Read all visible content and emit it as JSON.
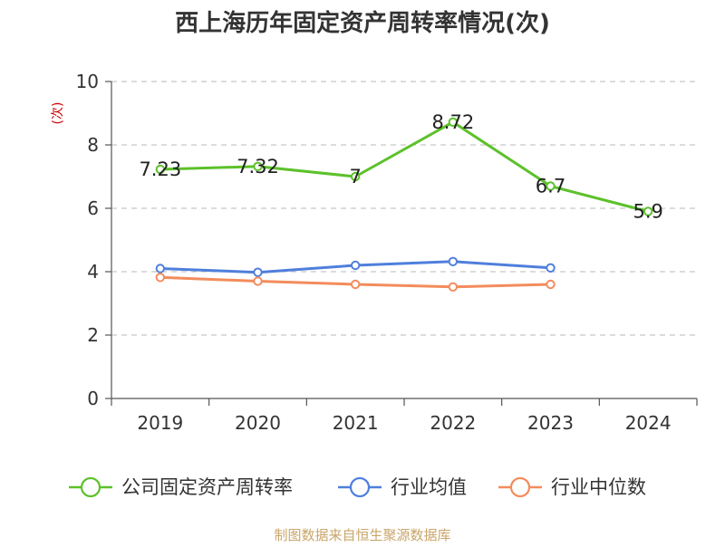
{
  "chart_data": {
    "type": "line",
    "title": "西上海历年固定资产周转率情况(次)",
    "ylabel": "(次)",
    "xlabel": "",
    "categories": [
      "2019",
      "2020",
      "2021",
      "2022",
      "2023",
      "2024"
    ],
    "ylim": [
      0,
      10
    ],
    "yticks": [
      0,
      2,
      4,
      6,
      8,
      10
    ],
    "grid": true,
    "legend_position": "bottom",
    "series": [
      {
        "name": "公司固定资产周转率",
        "color": "#5cc12a",
        "values": [
          7.23,
          7.32,
          7,
          8.72,
          6.7,
          5.9
        ],
        "labels": [
          "7.23",
          "7.32",
          "7",
          "8.72",
          "6.7",
          "5.9"
        ]
      },
      {
        "name": "行业均值",
        "color": "#4f7fdc",
        "values": [
          4.1,
          3.98,
          4.2,
          4.32,
          4.12,
          null
        ]
      },
      {
        "name": "行业中位数",
        "color": "#f28c5c",
        "values": [
          3.82,
          3.7,
          3.6,
          3.52,
          3.6,
          null
        ]
      }
    ]
  },
  "source": "制图数据来自恒生聚源数据库"
}
